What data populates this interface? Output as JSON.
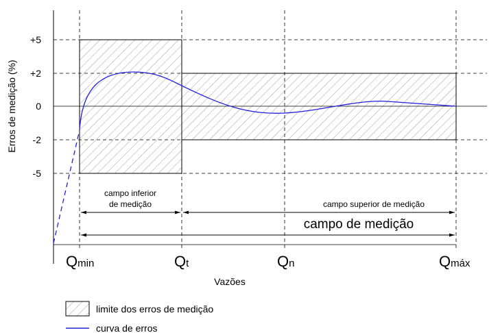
{
  "diagram": {
    "y_axis": {
      "label": "Erros de medição (%)",
      "ticks": [
        "+5",
        "+2",
        "0",
        "-2",
        "-5"
      ]
    },
    "x_axis": {
      "label": "Vazões",
      "points": [
        {
          "symbol": "Q",
          "subscript": "min"
        },
        {
          "symbol": "Q",
          "subscript": "t"
        },
        {
          "symbol": "Q",
          "subscript": "n"
        },
        {
          "symbol": "Q",
          "subscript": "máx"
        }
      ]
    },
    "ranges": {
      "lower": [
        "campo inferior",
        "de medição"
      ],
      "upper": "campo superior de medição",
      "total": "campo de medição"
    },
    "legend": [
      "limite dos erros de medição",
      "curva de erros"
    ]
  }
}
